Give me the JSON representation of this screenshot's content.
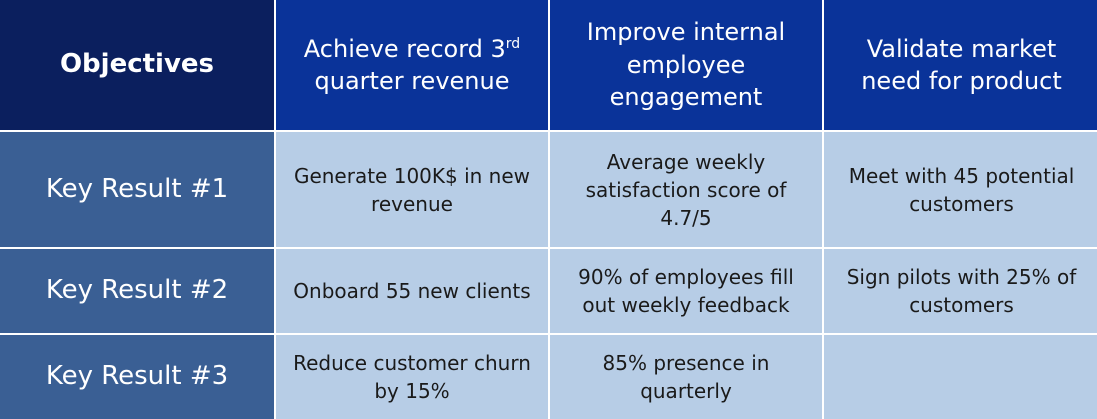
{
  "table": {
    "corner_label": "Objectives",
    "objectives": [
      {
        "text": "Achieve record 3",
        "superscript": "rd",
        "text_after": " quarter revenue"
      },
      {
        "text": "Improve internal employee engagement",
        "superscript": "",
        "text_after": ""
      },
      {
        "text": "Validate market need for product",
        "superscript": "",
        "text_after": ""
      }
    ],
    "key_results": [
      {
        "label": "Key Result #1",
        "cells": [
          "Generate 100K$ in new revenue",
          "Average weekly satisfaction score of 4.7/5",
          "Meet with 45 potential customers"
        ]
      },
      {
        "label": "Key Result #2",
        "cells": [
          "Onboard 55 new clients",
          "90% of employees fill out weekly feedback",
          "Sign pilots with 25% of customers"
        ]
      },
      {
        "label": "Key Result #3",
        "cells": [
          "Reduce customer churn by 15%",
          "85% presence in quarterly",
          ""
        ]
      }
    ],
    "colors": {
      "corner_bg": "#0b1f5e",
      "objective_bg": "#0a3399",
      "key_result_label_bg": "#3a5f94",
      "key_result_cell_bg": "#b7cde6"
    }
  }
}
